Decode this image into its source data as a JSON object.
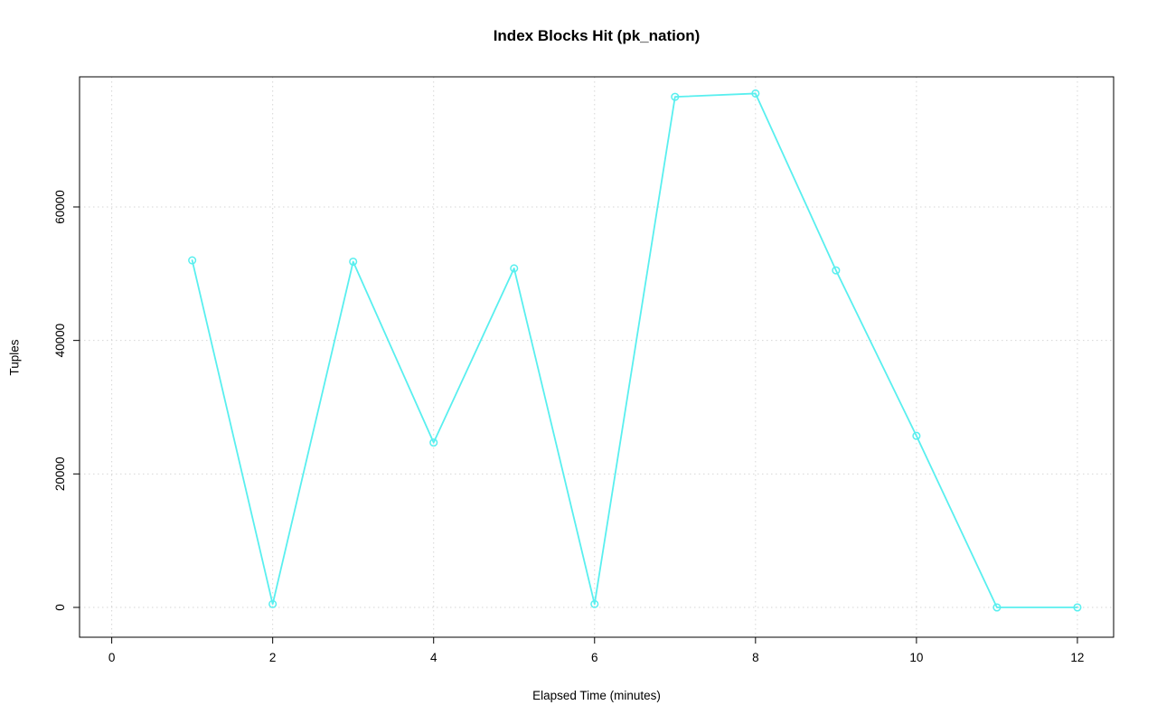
{
  "chart_data": {
    "type": "line",
    "title": "Index Blocks Hit (pk_nation)",
    "xlabel": "Elapsed Time (minutes)",
    "ylabel": "Tuples",
    "x": [
      1,
      2,
      3,
      4,
      5,
      6,
      7,
      8,
      9,
      10,
      11,
      12
    ],
    "y": [
      52000,
      500,
      51800,
      24700,
      50800,
      500,
      76500,
      77000,
      50500,
      25700,
      0,
      0
    ],
    "xlim": [
      -0.4,
      12.45
    ],
    "ylim": [
      -4470,
      79500
    ],
    "x_ticks": [
      0,
      2,
      4,
      6,
      8,
      10,
      12
    ],
    "y_ticks": [
      0,
      20000,
      40000,
      60000
    ],
    "grid": true,
    "grid_style": "dotted",
    "grid_color": "#d6d6d6",
    "series_color": "#59efef",
    "marker": "open-circle",
    "axis_color": "#000000",
    "text_color": "#000000",
    "legend": "none",
    "background": "#ffffff"
  }
}
